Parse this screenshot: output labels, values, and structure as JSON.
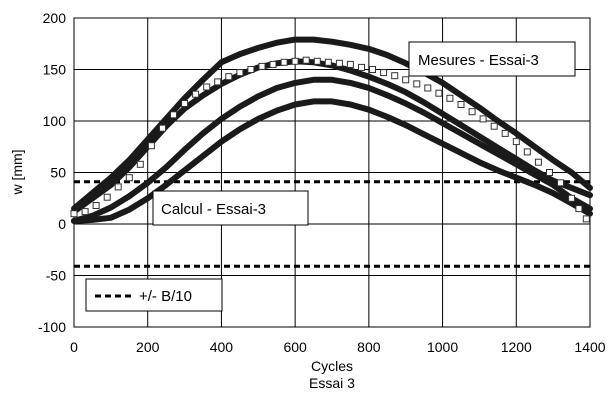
{
  "chart_data": {
    "type": "line",
    "title": "",
    "xlabel": "Cycles",
    "xlabel_sub": "Essai 3",
    "ylabel": "w [mm]",
    "xlim": [
      0,
      1400
    ],
    "ylim": [
      -100,
      200
    ],
    "xticks": [
      0,
      200,
      400,
      600,
      800,
      1000,
      1200,
      1400
    ],
    "yticks": [
      -100,
      -50,
      0,
      50,
      100,
      150,
      200
    ],
    "grid": true,
    "legend_position": "lower-left",
    "colors": {
      "series": "#1a1a1a",
      "grid": "#000000",
      "threshold": "#000000"
    },
    "series": [
      {
        "style": "thick-line",
        "x": [
          0,
          50,
          100,
          150,
          200,
          250,
          300,
          350,
          400,
          450,
          500,
          550,
          600,
          650,
          700,
          750,
          800,
          850,
          900,
          950,
          1000,
          1050,
          1100,
          1150,
          1200,
          1250,
          1300,
          1350,
          1400
        ],
        "y": [
          15,
          30,
          45,
          62,
          82,
          102,
          122,
          140,
          157,
          165,
          171,
          176,
          179,
          179,
          177,
          174,
          170,
          164,
          156,
          147,
          137,
          125,
          113,
          100,
          88,
          75,
          62,
          50,
          35
        ]
      },
      {
        "style": "thick-line",
        "x": [
          0,
          50,
          100,
          150,
          200,
          250,
          300,
          350,
          400,
          450,
          500,
          550,
          600,
          650,
          700,
          750,
          800,
          850,
          900,
          950,
          1000,
          1050,
          1100,
          1150,
          1200,
          1250,
          1300,
          1350,
          1400
        ],
        "y": [
          12,
          25,
          38,
          55,
          75,
          95,
          112,
          125,
          136,
          145,
          152,
          156,
          158,
          157,
          154,
          149,
          143,
          136,
          128,
          118,
          107,
          96,
          85,
          74,
          63,
          52,
          42,
          35,
          28
        ]
      },
      {
        "style": "thick-line",
        "x": [
          0,
          50,
          100,
          150,
          200,
          250,
          300,
          350,
          400,
          450,
          500,
          550,
          600,
          650,
          700,
          750,
          800,
          850,
          900,
          950,
          1000,
          1050,
          1100,
          1150,
          1200,
          1250,
          1300,
          1350,
          1400
        ],
        "y": [
          3,
          8,
          16,
          27,
          40,
          55,
          72,
          88,
          102,
          114,
          124,
          132,
          137,
          140,
          140,
          137,
          132,
          125,
          117,
          108,
          98,
          88,
          78,
          68,
          58,
          48,
          38,
          25,
          15
        ]
      },
      {
        "style": "thick-line",
        "x": [
          0,
          50,
          100,
          150,
          200,
          250,
          300,
          350,
          400,
          450,
          500,
          550,
          600,
          650,
          700,
          750,
          800,
          850,
          900,
          950,
          1000,
          1050,
          1100,
          1150,
          1200,
          1250,
          1300,
          1350,
          1400
        ],
        "y": [
          3,
          4,
          6,
          14,
          25,
          38,
          52,
          66,
          80,
          92,
          102,
          110,
          116,
          119,
          119,
          116,
          111,
          104,
          96,
          87,
          78,
          69,
          60,
          52,
          45,
          38,
          30,
          20,
          10
        ]
      },
      {
        "style": "open-square-markers",
        "x": [
          0,
          30,
          60,
          90,
          120,
          150,
          180,
          210,
          240,
          270,
          300,
          330,
          360,
          390,
          420,
          450,
          480,
          510,
          540,
          570,
          600,
          630,
          660,
          690,
          720,
          750,
          780,
          810,
          840,
          870,
          900,
          930,
          960,
          990,
          1020,
          1050,
          1080,
          1110,
          1140,
          1170,
          1200,
          1230,
          1260,
          1290,
          1320,
          1350,
          1370,
          1390
        ],
        "y": [
          10,
          12,
          18,
          26,
          36,
          45,
          58,
          76,
          93,
          106,
          117,
          126,
          133,
          138,
          143,
          147,
          150,
          153,
          155,
          157,
          158,
          159,
          158,
          157,
          156,
          155,
          152,
          150,
          147,
          144,
          140,
          136,
          132,
          127,
          122,
          116,
          109,
          102,
          95,
          88,
          80,
          70,
          60,
          50,
          40,
          25,
          15,
          5
        ]
      }
    ],
    "threshold_lines": [
      {
        "y": 41,
        "style": "dashed"
      },
      {
        "y": -41,
        "style": "dashed"
      }
    ],
    "annotations": [
      {
        "text": "Mesures - Essai-3"
      },
      {
        "text": "Calcul - Essai-3"
      },
      {
        "text": "+/- B/10"
      }
    ]
  }
}
